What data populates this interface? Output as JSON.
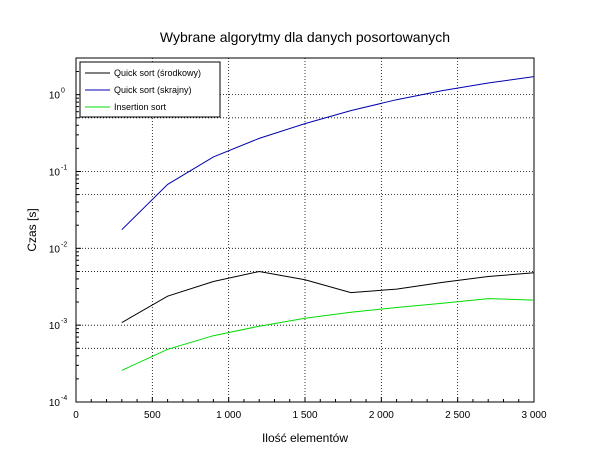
{
  "chart_data": {
    "type": "line",
    "title": "Wybrane algorytmy dla danych posortowanych",
    "xlabel": "Ilość elementów",
    "ylabel": "Czas [s]",
    "xlim": [
      0,
      3000
    ],
    "ylim": [
      0.0001,
      3
    ],
    "y_scale": "log",
    "x_ticks": [
      0,
      500,
      1000,
      1500,
      2000,
      2500,
      3000
    ],
    "x_tick_labels": [
      "0",
      "500",
      "1 000",
      "1 500",
      "2 000",
      "2 500",
      "3 000"
    ],
    "y_ticks": [
      {
        "base": "10",
        "exp": "-4",
        "value": 0.0001
      },
      {
        "base": "10",
        "exp": "-3",
        "value": 0.001
      },
      {
        "base": "10",
        "exp": "-2",
        "value": 0.01
      },
      {
        "base": "10",
        "exp": "-1",
        "value": 0.1
      },
      {
        "base": "10",
        "exp": "0",
        "value": 1
      }
    ],
    "grid": true,
    "legend_position": "top-left",
    "series": [
      {
        "name": "Quick sort (środkowy)",
        "color": "#000000",
        "x": [
          300,
          600,
          900,
          1200,
          1500,
          1800,
          2100,
          2400,
          2700,
          3000
        ],
        "y": [
          0.00108,
          0.00238,
          0.0037,
          0.005,
          0.0039,
          0.00265,
          0.00295,
          0.0036,
          0.0043,
          0.0048
        ]
      },
      {
        "name": "Quick sort (skrajny)",
        "color": "#0000b0",
        "x": [
          300,
          600,
          900,
          1200,
          1500,
          1800,
          2100,
          2400,
          2700,
          3000
        ],
        "y": [
          0.0175,
          0.068,
          0.155,
          0.27,
          0.42,
          0.62,
          0.86,
          1.13,
          1.42,
          1.72
        ]
      },
      {
        "name": "Insertion sort",
        "color": "#00dd00",
        "x": [
          300,
          600,
          900,
          1200,
          1500,
          1800,
          2100,
          2400,
          2700,
          3000
        ],
        "y": [
          0.000258,
          0.000485,
          0.00073,
          0.00097,
          0.00123,
          0.00147,
          0.0017,
          0.00193,
          0.00222,
          0.00212
        ]
      }
    ]
  }
}
